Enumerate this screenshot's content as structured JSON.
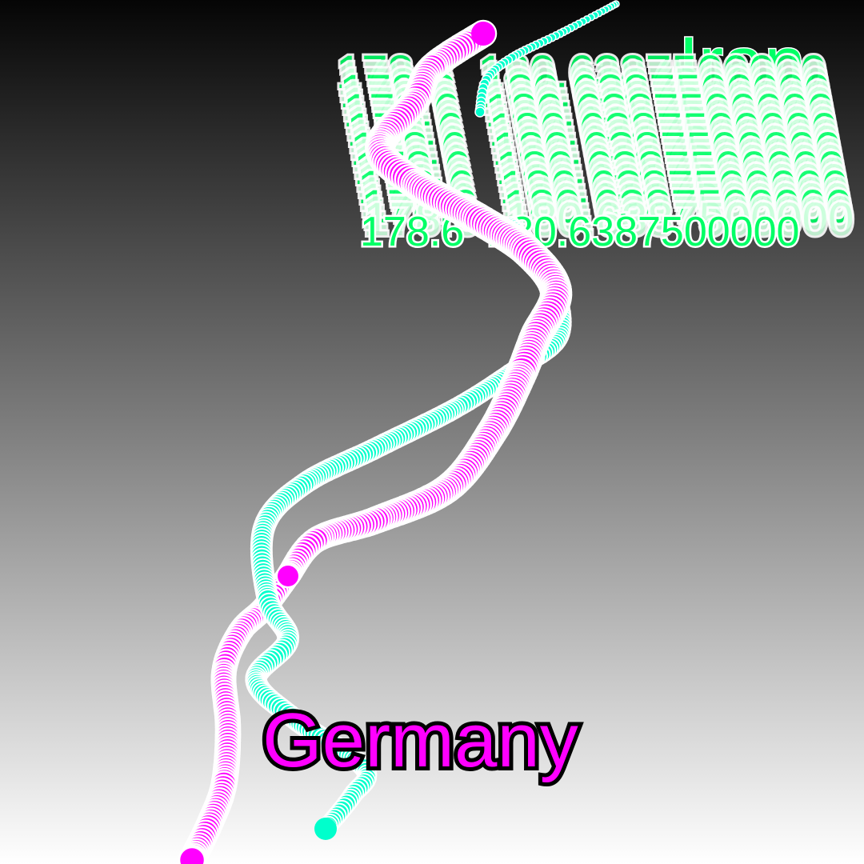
{
  "labels": {
    "top_name": "Iran",
    "value_text": "178.6  180.6387500000",
    "bottom_name": "Germany"
  },
  "colors": {
    "magenta": "#ff00ff",
    "cyan": "#00ffcc",
    "green": "#00ff66",
    "stroke": "#ffffff",
    "outline": "#000000"
  }
}
